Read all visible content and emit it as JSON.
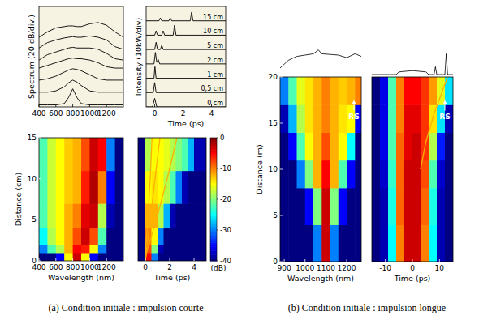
{
  "chart_data": [
    {
      "type": "line",
      "ylabel": "Spectrum (20 dB/div.)",
      "xlim": [
        400,
        1400
      ],
      "xticks": [
        400,
        600,
        800,
        1000,
        1200
      ],
      "ylim": [
        0,
        150
      ],
      "tick_labels": "x",
      "color": "#000000",
      "x": [
        400,
        500,
        600,
        700,
        750,
        800,
        850,
        900,
        1000,
        1100,
        1200,
        1300,
        1400
      ],
      "series": [
        {
          "values": [
            3,
            3,
            3,
            5,
            14,
            27,
            14,
            5,
            3,
            3,
            3,
            3,
            3
          ]
        },
        {
          "values": [
            22,
            22,
            24,
            30,
            36,
            40,
            37,
            32,
            24,
            22,
            22,
            22,
            22
          ]
        },
        {
          "values": [
            40,
            42,
            46,
            52,
            55,
            57,
            56,
            54,
            48,
            42,
            40,
            40,
            40
          ]
        },
        {
          "values": [
            58,
            62,
            66,
            70,
            72,
            73,
            72,
            72,
            70,
            66,
            60,
            58,
            58
          ]
        },
        {
          "values": [
            70,
            78,
            82,
            86,
            88,
            89,
            88,
            88,
            88,
            86,
            80,
            72,
            70
          ]
        },
        {
          "values": [
            88,
            96,
            100,
            103,
            104,
            105,
            104,
            104,
            106,
            104,
            100,
            90,
            86
          ]
        },
        {
          "values": [
            104,
            112,
            118,
            120,
            121,
            121,
            120,
            120,
            124,
            126,
            122,
            112,
            104
          ]
        }
      ]
    },
    {
      "type": "line",
      "xlabel": "Time (ps)",
      "ylabel": "Intensity (10kW/div)",
      "xlim": [
        -0.6,
        5
      ],
      "xticks": [
        0,
        2,
        4
      ],
      "ylim": [
        0,
        70
      ],
      "tick_labels": "x",
      "color": "#000000",
      "series": [
        {
          "name": "0 cm",
          "x": [
            -0.6,
            -0.15,
            0,
            0.15,
            5
          ],
          "values": [
            0,
            0,
            6,
            0,
            0
          ]
        },
        {
          "name": "0,5 cm",
          "x": [
            -0.6,
            -0.1,
            0,
            0.1,
            5
          ],
          "values": [
            10,
            10,
            17,
            10,
            10
          ]
        },
        {
          "name": "1 cm",
          "x": [
            -0.6,
            -0.05,
            0.02,
            0.1,
            5
          ],
          "values": [
            20,
            20,
            28,
            20,
            20
          ]
        },
        {
          "name": "2 cm",
          "x": [
            -0.6,
            -0.05,
            0.05,
            0.15,
            0.25,
            0.35,
            5
          ],
          "values": [
            30,
            30,
            38,
            31,
            33,
            30,
            30
          ]
        },
        {
          "name": "5 cm",
          "x": [
            -0.6,
            0,
            0.1,
            0.2,
            0.4,
            0.5,
            0.6,
            5
          ],
          "values": [
            40,
            40,
            45,
            40,
            40,
            43,
            40,
            40
          ]
        },
        {
          "name": "10 cm",
          "x": [
            -0.6,
            0,
            0.1,
            0.2,
            0.5,
            0.6,
            0.7,
            1.3,
            1.4,
            1.5,
            5
          ],
          "values": [
            50,
            50,
            53,
            50,
            50,
            53,
            50,
            50,
            57,
            50,
            50
          ]
        },
        {
          "name": "15 cm",
          "x": [
            -0.6,
            0.3,
            0.4,
            0.5,
            1.0,
            1.1,
            1.2,
            2.5,
            2.6,
            2.7,
            5
          ],
          "values": [
            60,
            60,
            62,
            60,
            60,
            62,
            60,
            60,
            66,
            60,
            60
          ]
        }
      ]
    },
    {
      "type": "heatmap",
      "xlabel": "Wavelength (nm)",
      "ylabel": "Distance (cm)",
      "xlim": [
        400,
        1400
      ],
      "xticks": [
        400,
        600,
        800,
        1000,
        1200
      ],
      "ylim": [
        0,
        15
      ],
      "yticks": [
        0,
        5,
        10,
        15
      ],
      "clim": [
        -40,
        0
      ],
      "x_edges": [
        400,
        500,
        600,
        700,
        800,
        900,
        1000,
        1100,
        1200,
        1300,
        1400
      ],
      "y_edges": [
        0,
        1,
        2,
        4,
        7,
        11,
        15
      ],
      "cells": [
        [
          -40,
          -40,
          -35,
          -15,
          -3,
          -15,
          -35,
          -40,
          -40,
          -40
        ],
        [
          -30,
          -22,
          -18,
          -12,
          -5,
          -6,
          -15,
          -30,
          -40,
          -40
        ],
        [
          -25,
          -18,
          -15,
          -12,
          -8,
          -3,
          -8,
          -22,
          -40,
          -40
        ],
        [
          -22,
          -17,
          -15,
          -12,
          -10,
          -4,
          -3,
          -18,
          -38,
          -40
        ],
        [
          -22,
          -17,
          -15,
          -13,
          -12,
          -6,
          -2,
          -10,
          -35,
          -40
        ],
        [
          -22,
          -17,
          -15,
          -13,
          -12,
          -8,
          -3,
          -5,
          -30,
          -40
        ]
      ]
    },
    {
      "type": "heatmap",
      "xlabel": "Time (ps)",
      "xlim": [
        -0.6,
        5
      ],
      "xticks": [
        0,
        2,
        4
      ],
      "ylim": [
        0,
        15
      ],
      "tick_labels": "x",
      "clim": [
        -40,
        0
      ],
      "cticks": [
        0,
        -10,
        -20,
        -30,
        -40
      ],
      "colorbar_label": "(dB)",
      "x_edges": [
        -0.6,
        0,
        0.5,
        1,
        1.5,
        2,
        2.5,
        3,
        3.5,
        4,
        5
      ],
      "y_edges": [
        0,
        1,
        2,
        4,
        7,
        11,
        15
      ],
      "cells": [
        [
          -40,
          -5,
          -30,
          -40,
          -40,
          -40,
          -40,
          -40,
          -40,
          -40
        ],
        [
          -40,
          -8,
          -20,
          -38,
          -40,
          -40,
          -40,
          -40,
          -40,
          -40
        ],
        [
          -40,
          -10,
          -15,
          -30,
          -40,
          -40,
          -40,
          -40,
          -40,
          -40
        ],
        [
          -40,
          -12,
          -12,
          -18,
          -28,
          -38,
          -40,
          -40,
          -40,
          -40
        ],
        [
          -40,
          -15,
          -14,
          -15,
          -18,
          -22,
          -30,
          -38,
          -40,
          -40
        ],
        [
          -40,
          -18,
          -15,
          -15,
          -16,
          -18,
          -20,
          -22,
          -28,
          -38
        ]
      ],
      "series": [
        {
          "color": "#ffb000",
          "x": [
            0,
            0.1,
            0.3,
            0.9,
            1.8,
            2.6
          ],
          "values": [
            0,
            1,
            2,
            5,
            10,
            15
          ]
        },
        {
          "color": "#ffb000",
          "x": [
            0,
            0.05,
            0.15,
            0.4,
            0.8,
            1.2
          ],
          "values": [
            0,
            1,
            2,
            5,
            10,
            15
          ]
        },
        {
          "color": "#ffb000",
          "x": [
            0,
            0.02,
            0.05,
            0.2,
            0.4,
            0.55
          ],
          "values": [
            0,
            1,
            2,
            5,
            10,
            15
          ]
        }
      ]
    },
    {
      "type": "heatmap",
      "xlabel": "Wavelength (nm)",
      "ylabel": "Distance (m)",
      "xlim": [
        880,
        1270
      ],
      "xticks": [
        900,
        1000,
        1100,
        1200
      ],
      "ylim": [
        0,
        20
      ],
      "yticks": [
        0,
        5,
        10,
        15,
        20
      ],
      "clim": [
        -40,
        0
      ],
      "x_edges": [
        880,
        920,
        960,
        1000,
        1040,
        1080,
        1120,
        1160,
        1200,
        1240,
        1270
      ],
      "y_edges": [
        0,
        4,
        8,
        11,
        14,
        17,
        20
      ],
      "cells": [
        [
          -40,
          -40,
          -40,
          -40,
          -30,
          -3,
          -30,
          -40,
          -40,
          -40
        ],
        [
          -40,
          -40,
          -40,
          -35,
          -20,
          -3,
          -20,
          -35,
          -40,
          -40
        ],
        [
          -40,
          -40,
          -30,
          -20,
          -12,
          -5,
          -12,
          -22,
          -35,
          -40
        ],
        [
          -40,
          -35,
          -22,
          -15,
          -12,
          -8,
          -12,
          -15,
          -25,
          -40
        ],
        [
          -38,
          -28,
          -18,
          -14,
          -12,
          -10,
          -12,
          -14,
          -15,
          -35
        ],
        [
          -30,
          -22,
          -16,
          -14,
          -12,
          -10,
          -12,
          -13,
          -12,
          -10
        ]
      ],
      "annotations": [
        {
          "text": "RS",
          "x": 1235,
          "y": 17.5
        }
      ],
      "inset": {
        "x": [
          880,
          920,
          960,
          1000,
          1040,
          1064,
          1080,
          1120,
          1160,
          1200,
          1240,
          1270
        ],
        "values": [
          -30,
          -18,
          -12,
          -10,
          -8,
          -2,
          -8,
          -9,
          -10,
          -14,
          -8,
          -12
        ],
        "ylim": [
          -40,
          0
        ]
      }
    },
    {
      "type": "heatmap",
      "xlabel": "Time (ps)",
      "xlim": [
        -15,
        15
      ],
      "xticks": [
        -10,
        0,
        10
      ],
      "ylim": [
        0,
        20
      ],
      "tick_labels": "x",
      "clim": [
        -40,
        0
      ],
      "x_edges": [
        -15,
        -12,
        -9,
        -6,
        -3,
        0,
        3,
        6,
        9,
        12,
        15
      ],
      "y_edges": [
        0,
        4,
        8,
        11,
        14,
        17,
        20
      ],
      "cells": [
        [
          -40,
          -38,
          -25,
          -10,
          -3,
          -3,
          -10,
          -25,
          -38,
          -40
        ],
        [
          -40,
          -38,
          -24,
          -9,
          -3,
          -3,
          -9,
          -24,
          -38,
          -40
        ],
        [
          -40,
          -37,
          -23,
          -9,
          -3,
          -3,
          -8,
          -22,
          -37,
          -40
        ],
        [
          -40,
          -36,
          -22,
          -9,
          -4,
          -3,
          -7,
          -18,
          -34,
          -40
        ],
        [
          -40,
          -36,
          -22,
          -10,
          -4,
          -4,
          -7,
          -14,
          -26,
          -38
        ],
        [
          -40,
          -36,
          -22,
          -10,
          -5,
          -5,
          -7,
          -11,
          -16,
          -26
        ]
      ],
      "series": [
        {
          "color": "#ffb000",
          "x": [
            3,
            5,
            8,
            10.5,
            13
          ],
          "values": [
            10,
            13,
            16,
            18,
            20
          ]
        }
      ],
      "annotations": [
        {
          "text": "RS",
          "x": 12,
          "y": 17.5
        }
      ],
      "inset": {
        "x": [
          -15,
          -6,
          -5,
          0,
          5,
          6,
          8,
          8.5,
          9,
          12,
          12.5,
          13,
          15
        ],
        "values": [
          0,
          0,
          1,
          1.5,
          1,
          0,
          0,
          3,
          0,
          0,
          8,
          0,
          0
        ],
        "ylim": [
          0,
          10
        ]
      }
    }
  ],
  "captions": [
    "(a) Condition initiale : impulsion courte",
    "(b) Condition initiale : impulsion longue"
  ]
}
